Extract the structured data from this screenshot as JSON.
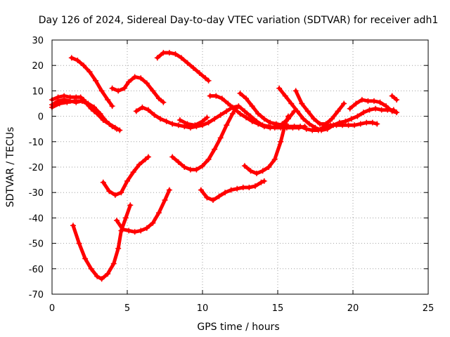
{
  "chart_data": {
    "type": "scatter",
    "title": "Day 126 of 2024, Sidereal Day-to-day VTEC variation (SDTVAR) for receiver adh1",
    "xlabel": "GPS time / hours",
    "ylabel": "SDTVAR / TECUs",
    "xlim": [
      0,
      25
    ],
    "ylim": [
      -70,
      30
    ],
    "xticks": [
      0,
      5,
      10,
      15,
      20,
      25
    ],
    "yticks": [
      -70,
      -60,
      -50,
      -40,
      -30,
      -20,
      -10,
      0,
      10,
      20,
      30
    ],
    "grid": true,
    "legend": "none",
    "marker_color": "#ff0000",
    "series": [
      {
        "points": [
          [
            0,
            4.5
          ],
          [
            0.4,
            6
          ],
          [
            0.8,
            6.5
          ],
          [
            1.2,
            6
          ],
          [
            1.6,
            5.5
          ],
          [
            2,
            6
          ],
          [
            2.3,
            5
          ],
          [
            2.6,
            3
          ],
          [
            3,
            1
          ],
          [
            3.4,
            -1.5
          ],
          [
            3.8,
            -3
          ],
          [
            4.2,
            -4.5
          ],
          [
            4.5,
            -5.5
          ]
        ]
      },
      {
        "points": [
          [
            0,
            6.5
          ],
          [
            0.4,
            7.5
          ],
          [
            0.8,
            8
          ],
          [
            1.2,
            7.5
          ],
          [
            1.6,
            7.5
          ],
          [
            1.9,
            7.5
          ],
          [
            2.1,
            6.5
          ],
          [
            2.5,
            4
          ],
          [
            2.8,
            2
          ]
        ]
      },
      {
        "points": [
          [
            0,
            3.5
          ],
          [
            0.5,
            5
          ],
          [
            1,
            5.5
          ],
          [
            1.5,
            6
          ],
          [
            2,
            6
          ],
          [
            2.4,
            5
          ],
          [
            2.8,
            3.5
          ],
          [
            3.2,
            1
          ],
          [
            3.6,
            -2
          ],
          [
            4,
            -4
          ],
          [
            4.3,
            -5
          ]
        ]
      },
      {
        "points": [
          [
            1.3,
            23
          ],
          [
            1.7,
            22
          ],
          [
            2.1,
            20
          ],
          [
            2.5,
            17.5
          ],
          [
            2.9,
            14
          ],
          [
            3.3,
            10
          ],
          [
            3.7,
            6.5
          ],
          [
            4,
            4
          ]
        ]
      },
      {
        "points": [
          [
            4,
            11
          ],
          [
            4.4,
            10
          ],
          [
            4.8,
            11
          ],
          [
            5.1,
            13.5
          ],
          [
            5.5,
            15.5
          ],
          [
            5.9,
            15
          ],
          [
            6.3,
            13
          ],
          [
            6.7,
            10
          ],
          [
            7.1,
            7
          ],
          [
            7.4,
            5.5
          ]
        ]
      },
      {
        "points": [
          [
            7,
            23
          ],
          [
            7.4,
            25
          ],
          [
            7.8,
            25
          ],
          [
            8.2,
            24.5
          ],
          [
            8.6,
            23
          ],
          [
            9,
            21
          ],
          [
            9.4,
            19
          ],
          [
            9.8,
            17
          ],
          [
            10.2,
            15
          ],
          [
            10.4,
            14
          ]
        ]
      },
      {
        "points": [
          [
            5.6,
            2
          ],
          [
            6,
            3.5
          ],
          [
            6.4,
            2.5
          ],
          [
            6.8,
            0.5
          ],
          [
            7.2,
            -1
          ],
          [
            7.6,
            -2
          ],
          [
            8,
            -3
          ],
          [
            8.4,
            -3.5
          ],
          [
            8.8,
            -4
          ],
          [
            9.2,
            -4.5
          ],
          [
            9.6,
            -4
          ],
          [
            10,
            -3.5
          ],
          [
            10.4,
            -2.5
          ],
          [
            10.8,
            -1
          ],
          [
            11.2,
            0.5
          ],
          [
            11.6,
            2
          ],
          [
            12,
            3.5
          ],
          [
            12.4,
            4
          ],
          [
            12.8,
            2
          ],
          [
            13.2,
            0
          ],
          [
            13.6,
            -2
          ],
          [
            14,
            -3.5
          ],
          [
            14.4,
            -4
          ],
          [
            14.8,
            -4.5
          ],
          [
            15.2,
            -4.5
          ],
          [
            15.6,
            -4.5
          ],
          [
            16,
            -4.5
          ],
          [
            16.4,
            -4.5
          ],
          [
            16.8,
            -4
          ]
        ]
      },
      {
        "points": [
          [
            8.5,
            -1.5
          ],
          [
            9,
            -3
          ],
          [
            9.5,
            -3.5
          ],
          [
            10,
            -2
          ],
          [
            10.3,
            -0.5
          ]
        ]
      },
      {
        "points": [
          [
            10.5,
            8
          ],
          [
            10.9,
            8
          ],
          [
            11.3,
            7
          ],
          [
            11.7,
            5
          ],
          [
            12.1,
            3
          ],
          [
            12.5,
            1
          ],
          [
            12.9,
            -0.5
          ],
          [
            13.3,
            -2
          ],
          [
            13.7,
            -3
          ],
          [
            14.1,
            -4
          ],
          [
            14.5,
            -4.5
          ],
          [
            14.9,
            -4
          ],
          [
            15.3,
            -3
          ],
          [
            15.7,
            -1
          ],
          [
            16.1,
            2
          ]
        ]
      },
      {
        "points": [
          [
            12.5,
            9
          ],
          [
            12.9,
            7
          ],
          [
            13.3,
            4
          ],
          [
            13.7,
            1
          ],
          [
            14.1,
            -1
          ],
          [
            14.5,
            -2.5
          ],
          [
            14.9,
            -3
          ],
          [
            15.3,
            -3.5
          ],
          [
            15.7,
            -4
          ],
          [
            16.1,
            -4
          ],
          [
            16.5,
            -4
          ],
          [
            16.9,
            -5
          ],
          [
            17.3,
            -5.5
          ],
          [
            17.7,
            -5.5
          ],
          [
            18.1,
            -4
          ],
          [
            18.5,
            -3.5
          ],
          [
            18.9,
            -3.5
          ],
          [
            19.3,
            -3.5
          ],
          [
            19.7,
            -3.5
          ],
          [
            20.1,
            -3.5
          ],
          [
            20.5,
            -3
          ],
          [
            20.9,
            -2.5
          ],
          [
            21.3,
            -2.5
          ],
          [
            21.6,
            -3
          ]
        ]
      },
      {
        "points": [
          [
            15.1,
            11
          ],
          [
            15.5,
            8
          ],
          [
            15.9,
            5
          ],
          [
            16.3,
            2
          ],
          [
            16.7,
            -1
          ],
          [
            17.1,
            -3
          ],
          [
            17.5,
            -4.5
          ],
          [
            17.9,
            -5.5
          ],
          [
            18.3,
            -5
          ],
          [
            18.7,
            -3.5
          ],
          [
            19.1,
            -2.5
          ],
          [
            19.5,
            -2
          ],
          [
            19.9,
            -1
          ],
          [
            20.3,
            0
          ],
          [
            20.7,
            1.5
          ],
          [
            21.1,
            2.5
          ],
          [
            21.5,
            3
          ],
          [
            21.9,
            2.5
          ],
          [
            22.3,
            2.5
          ],
          [
            22.7,
            2.5
          ]
        ]
      },
      {
        "points": [
          [
            16.2,
            10
          ],
          [
            16.6,
            5
          ],
          [
            17,
            2
          ],
          [
            17.4,
            -1
          ],
          [
            17.8,
            -3
          ],
          [
            18.2,
            -3
          ],
          [
            18.6,
            -1
          ],
          [
            19,
            2
          ],
          [
            19.4,
            5
          ]
        ]
      },
      {
        "points": [
          [
            19.8,
            3
          ],
          [
            20.2,
            5
          ],
          [
            20.6,
            6.5
          ],
          [
            21,
            6
          ],
          [
            21.4,
            6
          ],
          [
            21.8,
            5.5
          ],
          [
            22.2,
            4
          ],
          [
            22.6,
            2
          ],
          [
            22.9,
            1.5
          ]
        ]
      },
      {
        "points": [
          [
            22.6,
            8
          ],
          [
            22.9,
            6.5
          ]
        ]
      },
      {
        "points": [
          [
            1.4,
            -43
          ],
          [
            1.8,
            -50
          ],
          [
            2.2,
            -56
          ],
          [
            2.6,
            -60
          ],
          [
            3,
            -63
          ],
          [
            3.3,
            -64
          ],
          [
            3.7,
            -62
          ],
          [
            4.1,
            -58
          ],
          [
            4.4,
            -52
          ],
          [
            4.6,
            -45
          ],
          [
            4.9,
            -40
          ],
          [
            5.2,
            -35
          ]
        ]
      },
      {
        "points": [
          [
            4.3,
            -41
          ],
          [
            4.7,
            -44.5
          ],
          [
            5.1,
            -45
          ],
          [
            5.5,
            -45.5
          ],
          [
            5.9,
            -45
          ],
          [
            6.3,
            -44
          ],
          [
            6.7,
            -42
          ],
          [
            7.1,
            -38
          ],
          [
            7.5,
            -33
          ],
          [
            7.8,
            -29
          ]
        ]
      },
      {
        "points": [
          [
            3.4,
            -26
          ],
          [
            3.8,
            -29.5
          ],
          [
            4.2,
            -31
          ],
          [
            4.6,
            -30
          ],
          [
            5,
            -25.5
          ],
          [
            5.4,
            -22
          ],
          [
            5.8,
            -19
          ],
          [
            6.2,
            -17
          ],
          [
            6.4,
            -16
          ]
        ]
      },
      {
        "points": [
          [
            8,
            -16
          ],
          [
            8.4,
            -18
          ],
          [
            8.8,
            -20
          ],
          [
            9.2,
            -21
          ],
          [
            9.6,
            -21
          ],
          [
            10,
            -19.5
          ],
          [
            10.4,
            -17
          ],
          [
            10.8,
            -13
          ],
          [
            11.2,
            -8.5
          ],
          [
            11.6,
            -3.5
          ],
          [
            12,
            1
          ],
          [
            12.2,
            3
          ]
        ]
      },
      {
        "points": [
          [
            9.9,
            -29
          ],
          [
            10.3,
            -32
          ],
          [
            10.7,
            -33
          ],
          [
            11.1,
            -31.5
          ],
          [
            11.5,
            -30
          ],
          [
            11.9,
            -29
          ],
          [
            12.3,
            -28.5
          ],
          [
            12.7,
            -28
          ],
          [
            13.1,
            -28
          ],
          [
            13.5,
            -27.5
          ],
          [
            13.9,
            -26
          ],
          [
            14.1,
            -25.5
          ]
        ]
      },
      {
        "points": [
          [
            12.8,
            -19.5
          ],
          [
            13.2,
            -21.5
          ],
          [
            13.6,
            -22.5
          ],
          [
            14,
            -21.5
          ],
          [
            14.4,
            -20
          ],
          [
            14.8,
            -17
          ],
          [
            15.2,
            -10
          ],
          [
            15.5,
            -3
          ],
          [
            15.7,
            0
          ]
        ]
      }
    ]
  }
}
